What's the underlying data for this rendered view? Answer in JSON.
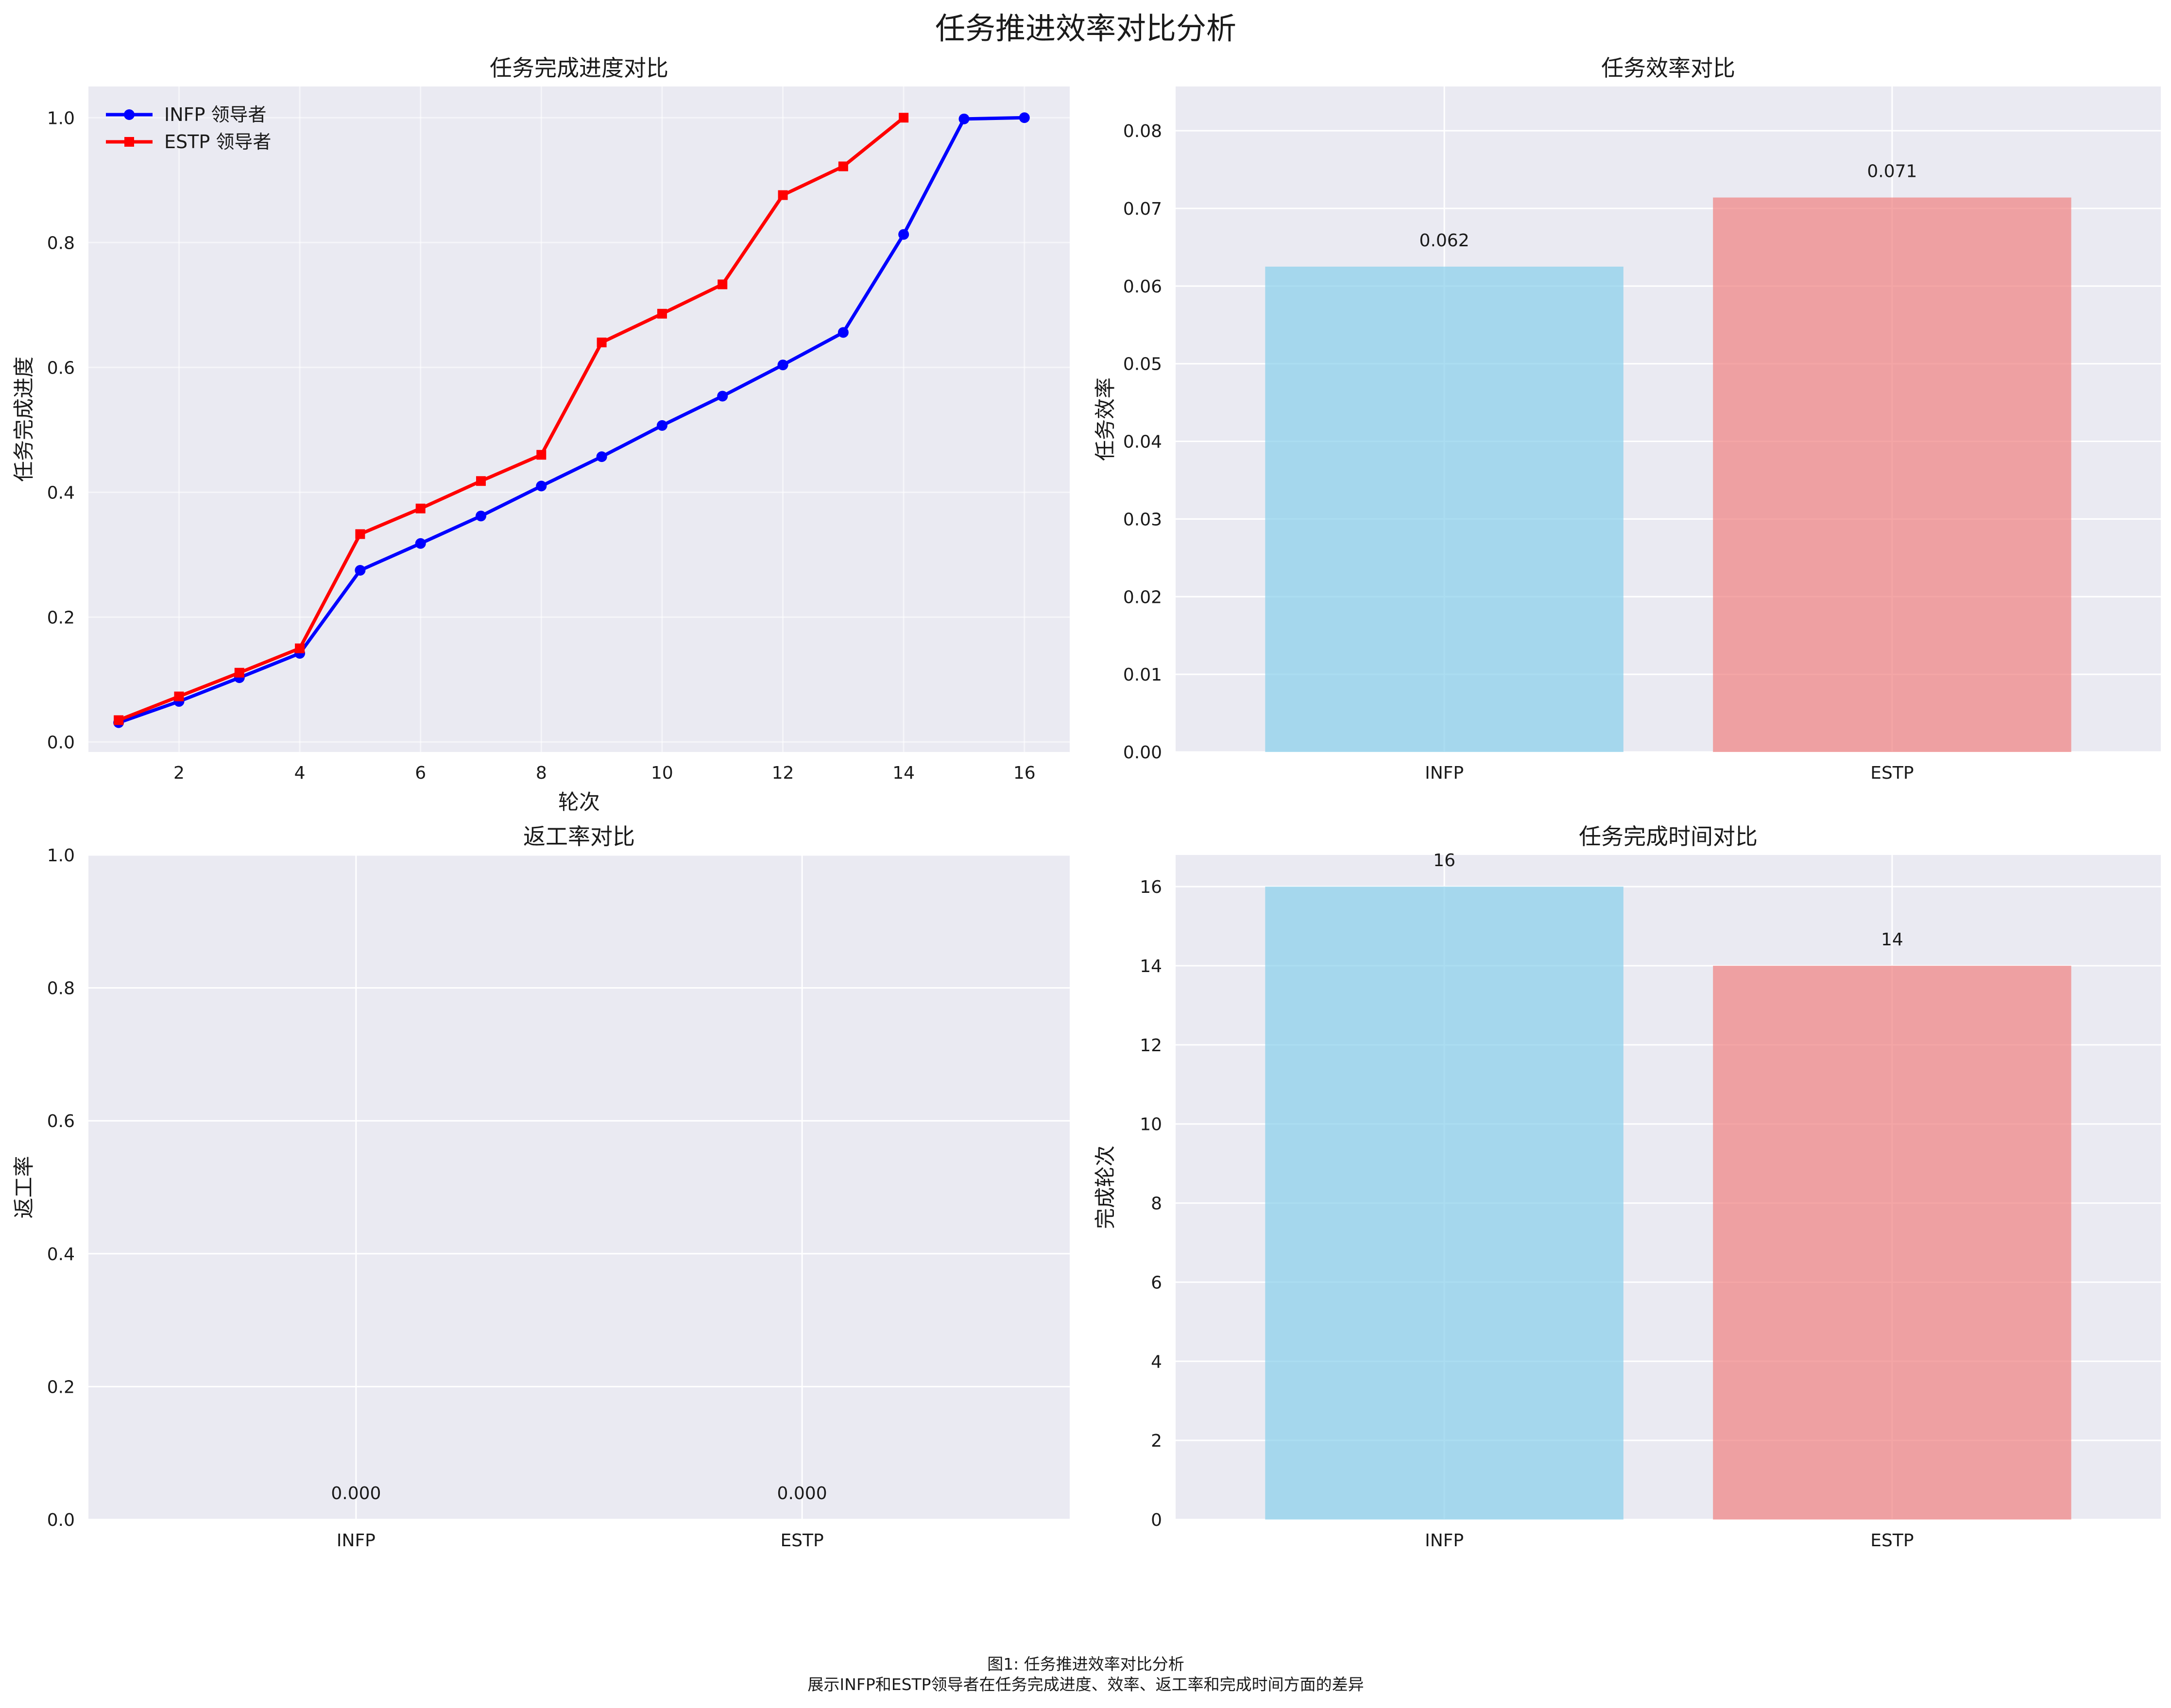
{
  "figure": {
    "title": "任务推进效率对比分析",
    "caption_line1": "图1: 任务推进效率对比分析",
    "caption_line2": "展示INFP和ESTP领导者在任务完成进度、效率、返工率和完成时间方面的差异"
  },
  "colors": {
    "background": "#eaeaf2",
    "grid": "#ffffff",
    "infp_line": "#0000ff",
    "estp_line": "#ff0000",
    "infp_bar": "#87ceeb",
    "estp_bar": "#f08080"
  },
  "chart_data": [
    {
      "id": "progress",
      "type": "line",
      "title": "任务完成进度对比",
      "xlabel": "轮次",
      "ylabel": "任务完成进度",
      "xlim": [
        0.5,
        16.75
      ],
      "ylim": [
        -0.016,
        1.05
      ],
      "xticks": [
        2,
        4,
        6,
        8,
        10,
        12,
        14,
        16
      ],
      "yticks": [
        0.0,
        0.2,
        0.4,
        0.6,
        0.8,
        1.0
      ],
      "ytick_labels": [
        "0.0",
        "0.2",
        "0.4",
        "0.6",
        "0.8",
        "1.0"
      ],
      "legend_position": "upper-left",
      "series": [
        {
          "name": "INFP 领导者",
          "marker": "circle",
          "x": [
            1,
            2,
            3,
            4,
            5,
            6,
            7,
            8,
            9,
            10,
            11,
            12,
            13,
            14,
            15,
            16
          ],
          "y": [
            0.031,
            0.065,
            0.103,
            0.142,
            0.275,
            0.318,
            0.362,
            0.41,
            0.457,
            0.507,
            0.554,
            0.604,
            0.656,
            0.813,
            0.998,
            1.0
          ]
        },
        {
          "name": "ESTP 领导者",
          "marker": "square",
          "x": [
            1,
            2,
            3,
            4,
            5,
            6,
            7,
            8,
            9,
            10,
            11,
            12,
            13,
            14
          ],
          "y": [
            0.035,
            0.073,
            0.111,
            0.15,
            0.333,
            0.374,
            0.418,
            0.46,
            0.64,
            0.686,
            0.733,
            0.876,
            0.922,
            1.0
          ]
        }
      ]
    },
    {
      "id": "efficiency",
      "type": "bar",
      "title": "任务效率对比",
      "xlabel": "",
      "ylabel": "任务效率",
      "ylim": [
        0,
        0.0857
      ],
      "yticks": [
        0.0,
        0.01,
        0.02,
        0.03,
        0.04,
        0.05,
        0.06,
        0.07,
        0.08
      ],
      "ytick_labels": [
        "0.00",
        "0.01",
        "0.02",
        "0.03",
        "0.04",
        "0.05",
        "0.06",
        "0.07",
        "0.08"
      ],
      "categories": [
        "INFP",
        "ESTP"
      ],
      "values": [
        0.0625,
        0.0714
      ],
      "value_labels": [
        "0.062",
        "0.071"
      ]
    },
    {
      "id": "rework",
      "type": "bar",
      "title": "返工率对比",
      "xlabel": "",
      "ylabel": "返工率",
      "ylim": [
        0,
        1.0
      ],
      "yticks": [
        0.0,
        0.2,
        0.4,
        0.6,
        0.8,
        1.0
      ],
      "ytick_labels": [
        "0.0",
        "0.2",
        "0.4",
        "0.6",
        "0.8",
        "1.0"
      ],
      "categories": [
        "INFP",
        "ESTP"
      ],
      "values": [
        0,
        0
      ],
      "value_labels": [
        "0.000",
        "0.000"
      ]
    },
    {
      "id": "completion",
      "type": "bar",
      "title": "任务完成时间对比",
      "xlabel": "",
      "ylabel": "完成轮次",
      "ylim": [
        0,
        16.8
      ],
      "yticks": [
        0,
        2,
        4,
        6,
        8,
        10,
        12,
        14,
        16
      ],
      "ytick_labels": [
        "0",
        "2",
        "4",
        "6",
        "8",
        "10",
        "12",
        "14",
        "16"
      ],
      "categories": [
        "INFP",
        "ESTP"
      ],
      "values": [
        16,
        14
      ],
      "value_labels": [
        "16",
        "14"
      ]
    }
  ]
}
